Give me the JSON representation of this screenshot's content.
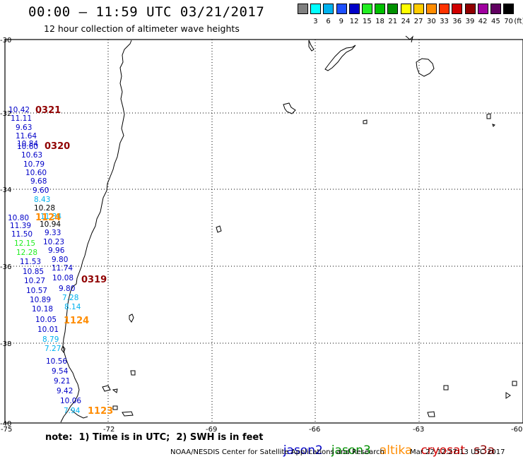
{
  "header": {
    "title": "00:00 — 11:59 UTC 03/21/2017",
    "subtitle": "12 hour collection of altimeter wave heights"
  },
  "scale": {
    "unit": "(ft)",
    "swatches": [
      {
        "label": "",
        "color": "#808080"
      },
      {
        "label": "3",
        "color": "#00ffff"
      },
      {
        "label": "6",
        "color": "#00b2ee"
      },
      {
        "label": "9",
        "color": "#1e50ff"
      },
      {
        "label": "12",
        "color": "#0000c8"
      },
      {
        "label": "15",
        "color": "#22ee22"
      },
      {
        "label": "18",
        "color": "#00c000"
      },
      {
        "label": "21",
        "color": "#009000"
      },
      {
        "label": "24",
        "color": "#ffff00"
      },
      {
        "label": "27",
        "color": "#ffcc00"
      },
      {
        "label": "30",
        "color": "#ff8c00"
      },
      {
        "label": "33",
        "color": "#ff3300"
      },
      {
        "label": "36",
        "color": "#d00000"
      },
      {
        "label": "39",
        "color": "#900000"
      },
      {
        "label": "42",
        "color": "#a000a0"
      },
      {
        "label": "45",
        "color": "#600060"
      },
      {
        "label": "70",
        "color": "#000000"
      }
    ]
  },
  "axes": {
    "lat_labels": [
      "-30",
      "-32",
      "-34",
      "-36",
      "-38",
      "-40"
    ],
    "lon_labels": [
      "-75",
      "-72",
      "-69",
      "-66",
      "-63",
      "-60"
    ]
  },
  "colors": {
    "jason2": "#0000c8",
    "jason3": "#009000",
    "altika": "#ff8c00",
    "cryosat": "#d00000",
    "s3a": "#900000",
    "light_blue": "#00b2ee",
    "light_green": "#22ee22"
  },
  "pass_labels": [
    "0321",
    "0320",
    "0319",
    "1124",
    "1123",
    "1124"
  ],
  "track_values": [
    {
      "text": "10.42",
      "color": "#0000c8"
    },
    {
      "text": "11.11",
      "color": "#0000c8"
    },
    {
      "text": "9.63",
      "color": "#0000c8"
    },
    {
      "text": "11.64",
      "color": "#0000c8"
    },
    {
      "text": "10.84",
      "color": "#0000c8"
    },
    {
      "text": "10.60",
      "color": "#0000c8"
    },
    {
      "text": "10.63",
      "color": "#0000c8"
    },
    {
      "text": "10.79",
      "color": "#0000c8"
    },
    {
      "text": "10.60",
      "color": "#0000c8"
    },
    {
      "text": "9.68",
      "color": "#0000c8"
    },
    {
      "text": "9.60",
      "color": "#0000c8"
    },
    {
      "text": "8.43",
      "color": "#00b2ee"
    },
    {
      "text": "10.28",
      "color": "#000000"
    },
    {
      "text": "10.80",
      "color": "#0000c8"
    },
    {
      "text": "11.34",
      "color": "#00b2ee"
    },
    {
      "text": "11.39",
      "color": "#0000c8"
    },
    {
      "text": "10.94",
      "color": "#000000"
    },
    {
      "text": "11.50",
      "color": "#0000c8"
    },
    {
      "text": "9.33",
      "color": "#0000c8"
    },
    {
      "text": "12.15",
      "color": "#22ee22"
    },
    {
      "text": "10.23",
      "color": "#0000c8"
    },
    {
      "text": "12.28",
      "color": "#22ee22"
    },
    {
      "text": "9.96",
      "color": "#0000c8"
    },
    {
      "text": "11.53",
      "color": "#0000c8"
    },
    {
      "text": "9.80",
      "color": "#0000c8"
    },
    {
      "text": "11.74",
      "color": "#0000c8"
    },
    {
      "text": "10.85",
      "color": "#0000c8"
    },
    {
      "text": "10.08",
      "color": "#0000c8"
    },
    {
      "text": "10.27",
      "color": "#0000c8"
    },
    {
      "text": "9.80",
      "color": "#0000c8"
    },
    {
      "text": "10.57",
      "color": "#0000c8"
    },
    {
      "text": "7.28",
      "color": "#00b2ee"
    },
    {
      "text": "10.89",
      "color": "#0000c8"
    },
    {
      "text": "8.14",
      "color": "#00b2ee"
    },
    {
      "text": "10.18",
      "color": "#0000c8"
    },
    {
      "text": "10.05",
      "color": "#0000c8"
    },
    {
      "text": "10.01",
      "color": "#0000c8"
    },
    {
      "text": "8.79",
      "color": "#00b2ee"
    },
    {
      "text": "7.27",
      "color": "#00b2ee"
    },
    {
      "text": "10.56",
      "color": "#0000c8"
    },
    {
      "text": "9.54",
      "color": "#0000c8"
    },
    {
      "text": "9.21",
      "color": "#0000c8"
    },
    {
      "text": "9.42",
      "color": "#0000c8"
    },
    {
      "text": "10.06",
      "color": "#0000c8"
    },
    {
      "text": "7.94",
      "color": "#00b2ee"
    }
  ],
  "footer": {
    "note": "note:  1) Time is in UTC;  2) SWH is in feet",
    "satellites": [
      {
        "name": "jason2",
        "color": "#0000c8"
      },
      {
        "name": "jason3",
        "color": "#009000"
      },
      {
        "name": "altika",
        "color": "#ff8c00"
      },
      {
        "name": "cryosat",
        "color": "#d00000"
      },
      {
        "name": "s3a",
        "color": "#900000"
      }
    ],
    "credit": "NOAA/NESDIS Center for Satellite Applications and Research",
    "timestamp": "Mar 22 12:27:13 UTC 2017"
  }
}
